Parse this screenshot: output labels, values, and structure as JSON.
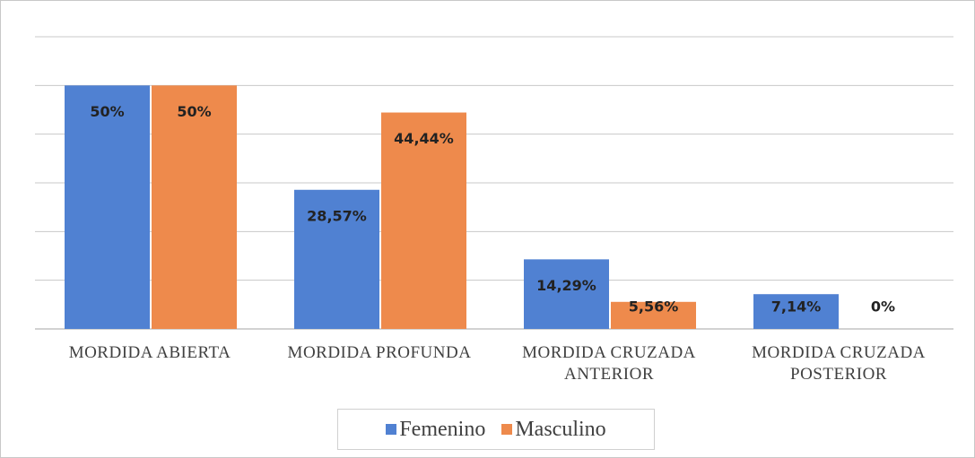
{
  "chart_data": {
    "type": "bar",
    "categories": [
      "MORDIDA ABIERTA",
      "MORDIDA PROFUNDA",
      "MORDIDA CRUZADA ANTERIOR",
      "MORDIDA CRUZADA POSTERIOR"
    ],
    "series": [
      {
        "name": "Femenino",
        "color": "#5081d2",
        "values": [
          50,
          28.57,
          14.29,
          7.14
        ],
        "value_labels": [
          "50%",
          "28,57%",
          "14,29%",
          "7,14%"
        ]
      },
      {
        "name": "Masculino",
        "color": "#ee8a4c",
        "values": [
          50,
          44.44,
          5.56,
          0
        ],
        "value_labels": [
          "50%",
          "44,44%",
          "5,56%",
          "0%"
        ]
      }
    ],
    "ylim": [
      0,
      60
    ],
    "yticks": [
      0,
      10,
      20,
      30,
      40,
      50,
      60
    ],
    "grid": true,
    "legend": "bottom"
  }
}
